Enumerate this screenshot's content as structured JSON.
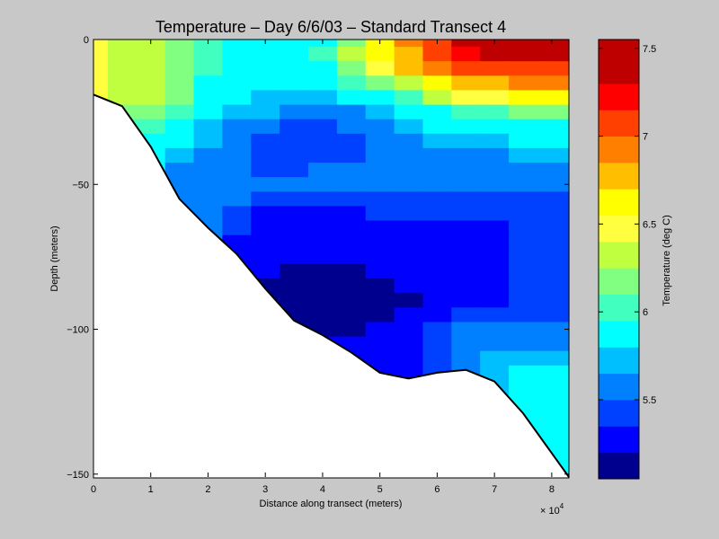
{
  "chart_data": {
    "type": "heatmap",
    "title": "Temperature – Day 6/6/03 – Standard Transect 4",
    "xlabel": "Distance along transect (meters)",
    "ylabel": "Depth (meters)",
    "x_multiplier_label": "× 10",
    "x_multiplier_exp": "4",
    "x_ticks": [
      "0",
      "1",
      "2",
      "3",
      "4",
      "5",
      "6",
      "7",
      "8"
    ],
    "y_ticks": [
      "0",
      "−50",
      "−100",
      "−150"
    ],
    "xlim": [
      0,
      8.3
    ],
    "ylim": [
      -151,
      0
    ],
    "colorbar": {
      "label": "Temperature (deg C)",
      "range": [
        5.05,
        7.55
      ],
      "ticks": [
        "5.5",
        "6",
        "6.5",
        "7",
        "7.5"
      ],
      "levels": [
        {
          "min": 5.05,
          "max": 5.2,
          "color": "#00008f"
        },
        {
          "min": 5.2,
          "max": 5.35,
          "color": "#0000ff"
        },
        {
          "min": 5.35,
          "max": 5.5,
          "color": "#0040ff"
        },
        {
          "min": 5.5,
          "max": 5.65,
          "color": "#0080ff"
        },
        {
          "min": 5.65,
          "max": 5.8,
          "color": "#00bfff"
        },
        {
          "min": 5.8,
          "max": 5.95,
          "color": "#00ffff"
        },
        {
          "min": 5.95,
          "max": 6.1,
          "color": "#40ffbf"
        },
        {
          "min": 6.1,
          "max": 6.25,
          "color": "#80ff80"
        },
        {
          "min": 6.25,
          "max": 6.4,
          "color": "#bfff40"
        },
        {
          "min": 6.4,
          "max": 6.55,
          "color": "#ffff40"
        },
        {
          "min": 6.55,
          "max": 6.7,
          "color": "#ffff00"
        },
        {
          "min": 6.7,
          "max": 6.85,
          "color": "#ffbf00"
        },
        {
          "min": 6.85,
          "max": 7.0,
          "color": "#ff8000"
        },
        {
          "min": 7.0,
          "max": 7.15,
          "color": "#ff4000"
        },
        {
          "min": 7.15,
          "max": 7.3,
          "color": "#ff0000"
        },
        {
          "min": 7.3,
          "max": 7.55,
          "color": "#bf0000"
        }
      ]
    },
    "bathymetry": [
      [
        0,
        -19
      ],
      [
        0.5,
        -23
      ],
      [
        1.0,
        -37
      ],
      [
        1.5,
        -55
      ],
      [
        2.0,
        -65
      ],
      [
        2.5,
        -74
      ],
      [
        3.0,
        -86
      ],
      [
        3.5,
        -97
      ],
      [
        4.0,
        -102
      ],
      [
        4.5,
        -108
      ],
      [
        5.0,
        -115
      ],
      [
        5.5,
        -117
      ],
      [
        6.0,
        -115
      ],
      [
        6.5,
        -114
      ],
      [
        7.0,
        -118
      ],
      [
        7.5,
        -129
      ],
      [
        8.3,
        -151
      ]
    ],
    "temperature_grid": {
      "x": [
        0,
        0.5,
        1.0,
        1.5,
        2.0,
        2.5,
        3.0,
        3.5,
        4.0,
        4.5,
        5.0,
        5.5,
        6.0,
        6.5,
        7.0,
        7.5,
        8.3
      ],
      "depth": [
        0,
        -5,
        -10,
        -15,
        -20,
        -25,
        -30,
        -35,
        -40,
        -45,
        -50,
        -55,
        -60,
        -65,
        -70,
        -75,
        -80,
        -85,
        -90,
        -95,
        -100,
        -105,
        -110,
        -115,
        -120,
        -125,
        -130,
        -135,
        -140,
        -145,
        -150
      ],
      "values": [
        [
          6.5,
          6.3,
          6.3,
          6.2,
          6.0,
          5.9,
          5.9,
          5.9,
          5.9,
          6.2,
          6.6,
          6.9,
          7.1,
          7.3,
          7.5,
          7.5,
          7.5
        ],
        [
          6.5,
          6.3,
          6.3,
          6.2,
          6.0,
          5.9,
          5.9,
          5.9,
          6.0,
          6.3,
          6.6,
          6.8,
          7.0,
          7.2,
          7.4,
          7.4,
          7.4
        ],
        [
          6.5,
          6.3,
          6.3,
          6.1,
          6.0,
          5.9,
          5.9,
          5.8,
          5.9,
          6.1,
          6.4,
          6.7,
          6.9,
          7.0,
          7.1,
          7.1,
          7.1
        ],
        [
          6.5,
          6.3,
          6.3,
          6.1,
          5.9,
          5.8,
          5.8,
          5.8,
          5.8,
          6.0,
          6.1,
          6.3,
          6.6,
          6.7,
          6.8,
          6.9,
          6.9
        ],
        [
          6.5,
          6.3,
          6.3,
          6.1,
          5.9,
          5.8,
          5.7,
          5.7,
          5.7,
          5.8,
          5.9,
          6.0,
          6.3,
          6.4,
          6.5,
          6.6,
          6.6
        ],
        [
          6.4,
          6.1,
          6.1,
          6.0,
          5.8,
          5.7,
          5.7,
          5.6,
          5.6,
          5.6,
          5.7,
          5.8,
          5.9,
          6.0,
          6.0,
          6.1,
          6.2
        ],
        [
          6.2,
          6.0,
          6.0,
          5.8,
          5.7,
          5.6,
          5.5,
          5.4,
          5.4,
          5.5,
          5.6,
          5.7,
          5.8,
          5.8,
          5.8,
          5.9,
          5.9
        ],
        [
          6.1,
          5.9,
          5.9,
          5.8,
          5.7,
          5.5,
          5.4,
          5.4,
          5.4,
          5.4,
          5.5,
          5.6,
          5.7,
          5.7,
          5.7,
          5.8,
          5.8
        ],
        [
          6.1,
          5.9,
          5.9,
          5.7,
          5.6,
          5.5,
          5.4,
          5.4,
          5.4,
          5.4,
          5.5,
          5.6,
          5.6,
          5.6,
          5.6,
          5.7,
          5.7
        ],
        [
          6.1,
          5.9,
          5.8,
          5.6,
          5.6,
          5.5,
          5.4,
          5.4,
          5.5,
          5.5,
          5.5,
          5.5,
          5.5,
          5.5,
          5.6,
          5.6,
          5.6
        ],
        [
          6.1,
          5.9,
          5.8,
          5.6,
          5.6,
          5.5,
          5.5,
          5.5,
          5.5,
          5.5,
          5.5,
          5.5,
          5.5,
          5.5,
          5.5,
          5.5,
          5.5
        ],
        [
          6.1,
          5.9,
          5.8,
          5.6,
          5.6,
          5.5,
          5.4,
          5.4,
          5.4,
          5.4,
          5.4,
          5.4,
          5.4,
          5.4,
          5.4,
          5.4,
          5.4
        ],
        [
          6.1,
          5.9,
          5.8,
          5.6,
          5.5,
          5.4,
          5.3,
          5.3,
          5.3,
          5.3,
          5.4,
          5.4,
          5.4,
          5.4,
          5.4,
          5.4,
          5.4
        ],
        [
          6.1,
          5.9,
          5.8,
          5.6,
          5.5,
          5.4,
          5.3,
          5.3,
          5.3,
          5.3,
          5.3,
          5.3,
          5.3,
          5.3,
          5.3,
          5.4,
          5.4
        ],
        [
          6.1,
          5.9,
          5.8,
          5.6,
          5.5,
          5.3,
          5.3,
          5.3,
          5.3,
          5.3,
          5.3,
          5.3,
          5.3,
          5.3,
          5.3,
          5.4,
          5.4
        ],
        [
          6.1,
          5.9,
          5.8,
          5.6,
          5.5,
          5.3,
          5.3,
          5.2,
          5.2,
          5.2,
          5.3,
          5.3,
          5.3,
          5.3,
          5.3,
          5.4,
          5.4
        ],
        [
          6.1,
          5.9,
          5.8,
          5.6,
          5.5,
          5.3,
          5.2,
          5.1,
          5.1,
          5.1,
          5.2,
          5.3,
          5.3,
          5.3,
          5.3,
          5.4,
          5.4
        ],
        [
          6.1,
          5.9,
          5.8,
          5.6,
          5.5,
          5.3,
          5.1,
          5.1,
          5.1,
          5.1,
          5.1,
          5.2,
          5.3,
          5.3,
          5.3,
          5.4,
          5.4
        ],
        [
          6.1,
          5.9,
          5.8,
          5.6,
          5.5,
          5.3,
          5.1,
          5.1,
          5.1,
          5.1,
          5.1,
          5.1,
          5.3,
          5.3,
          5.3,
          5.4,
          5.4
        ],
        [
          6.1,
          5.9,
          5.8,
          5.6,
          5.5,
          5.3,
          5.1,
          5.1,
          5.1,
          5.1,
          5.1,
          5.2,
          5.3,
          5.4,
          5.4,
          5.4,
          5.4
        ],
        [
          6.1,
          5.9,
          5.8,
          5.6,
          5.5,
          5.3,
          5.1,
          5.1,
          5.1,
          5.1,
          5.2,
          5.3,
          5.4,
          5.5,
          5.5,
          5.5,
          5.5
        ],
        [
          6.1,
          5.9,
          5.8,
          5.6,
          5.5,
          5.3,
          5.2,
          5.2,
          5.2,
          5.2,
          5.3,
          5.3,
          5.4,
          5.5,
          5.6,
          5.6,
          5.6
        ],
        [
          6.1,
          5.9,
          5.8,
          5.6,
          5.5,
          5.3,
          5.2,
          5.2,
          5.2,
          5.3,
          5.3,
          5.3,
          5.4,
          5.5,
          5.7,
          5.7,
          5.7
        ],
        [
          6.1,
          5.9,
          5.8,
          5.6,
          5.5,
          5.3,
          5.2,
          5.2,
          5.2,
          5.3,
          5.3,
          5.3,
          5.4,
          5.5,
          5.7,
          5.8,
          5.8
        ],
        [
          6.1,
          5.9,
          5.8,
          5.6,
          5.5,
          5.3,
          5.2,
          5.2,
          5.2,
          5.3,
          5.3,
          5.3,
          5.4,
          5.5,
          5.7,
          5.8,
          5.9
        ],
        [
          6.1,
          5.9,
          5.8,
          5.6,
          5.5,
          5.3,
          5.2,
          5.2,
          5.2,
          5.3,
          5.3,
          5.3,
          5.4,
          5.5,
          5.7,
          5.8,
          5.9
        ],
        [
          6.1,
          5.9,
          5.8,
          5.6,
          5.5,
          5.3,
          5.2,
          5.2,
          5.2,
          5.3,
          5.3,
          5.3,
          5.4,
          5.5,
          5.7,
          5.8,
          5.9
        ],
        [
          6.1,
          5.9,
          5.8,
          5.6,
          5.5,
          5.3,
          5.2,
          5.2,
          5.2,
          5.3,
          5.3,
          5.3,
          5.4,
          5.5,
          5.7,
          5.8,
          5.9
        ],
        [
          6.1,
          5.9,
          5.8,
          5.6,
          5.5,
          5.3,
          5.2,
          5.2,
          5.2,
          5.3,
          5.3,
          5.3,
          5.4,
          5.5,
          5.7,
          5.8,
          5.9
        ],
        [
          6.1,
          5.9,
          5.8,
          5.6,
          5.5,
          5.3,
          5.2,
          5.2,
          5.2,
          5.3,
          5.3,
          5.3,
          5.4,
          5.5,
          5.7,
          5.8,
          5.9
        ],
        [
          6.1,
          5.9,
          5.8,
          5.6,
          5.5,
          5.3,
          5.2,
          5.2,
          5.2,
          5.3,
          5.3,
          5.3,
          5.4,
          5.5,
          5.7,
          5.8,
          5.9
        ]
      ]
    }
  }
}
